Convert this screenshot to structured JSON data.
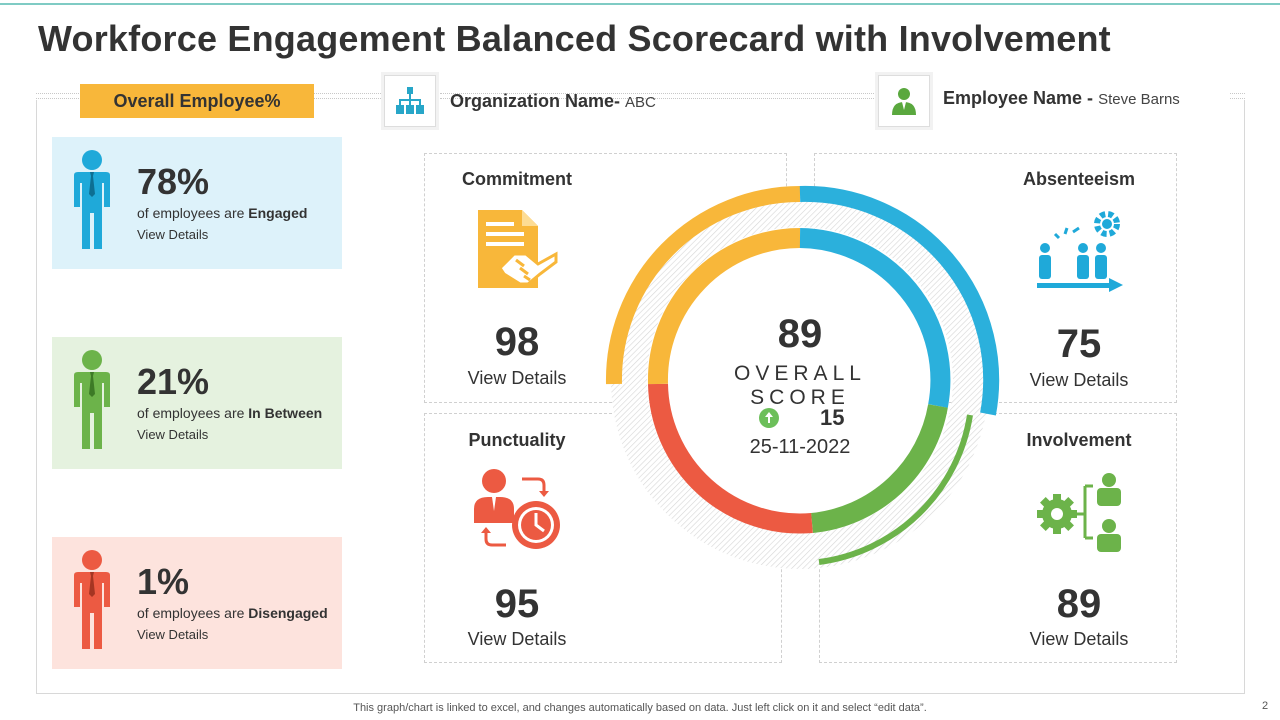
{
  "title": "Workforce Engagement Balanced Scorecard with Involvement",
  "overall_tag": "Overall Employee%",
  "organization": {
    "label": "Organization Name-",
    "value": "ABC"
  },
  "employee": {
    "label": "Employee Name -",
    "value": "Steve Barns"
  },
  "stats": [
    {
      "percent": "78%",
      "prefix": "of employees are ",
      "status": "Engaged",
      "link": "View Details",
      "bg": "#ddf2fa",
      "color": "#1fa9d9"
    },
    {
      "percent": "21%",
      "prefix": "of employees are ",
      "status": "In Between",
      "link": "View Details",
      "bg": "#e5f2df",
      "color": "#6cb34a"
    },
    {
      "percent": "1%",
      "prefix": "of employees are ",
      "status": "Disengaged",
      "link": "View Details",
      "bg": "#fde3dd",
      "color": "#ec5a42"
    }
  ],
  "metrics": {
    "commitment": {
      "title": "Commitment",
      "value": "98",
      "link": "View Details",
      "icon": "handshake-document-icon"
    },
    "absenteeism": {
      "title": "Absenteeism",
      "value": "75",
      "link": "View Details",
      "icon": "team-progress-icon"
    },
    "punctuality": {
      "title": "Punctuality",
      "value": "95",
      "link": "View Details",
      "icon": "person-clock-icon"
    },
    "involvement": {
      "title": "Involvement",
      "value": "89",
      "link": "View Details",
      "icon": "gear-people-icon"
    }
  },
  "overall": {
    "score": "89",
    "label": "OVERALL SCORE",
    "delta": "15",
    "date": "25-11-2022"
  },
  "colors": {
    "orange": "#f5a81c",
    "blue": "#1fa9d9",
    "green": "#6cb34a",
    "red": "#e84a2f",
    "accent": "#f8b73a"
  },
  "footer": "This graph/chart is linked to excel, and changes automatically based on data. Just left click on it and select “edit data”.",
  "page_number": "2"
}
